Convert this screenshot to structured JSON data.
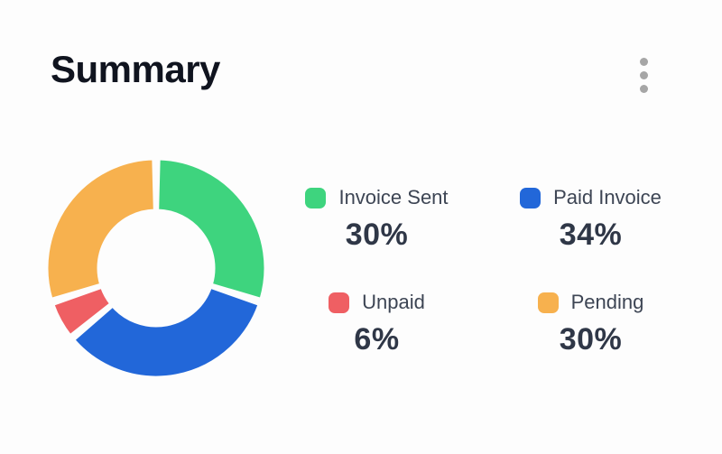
{
  "card": {
    "title": "Summary",
    "menu_icon": "kebab-vertical",
    "menu_dots_color": "#a6a6a6",
    "background_color": "#fdfdfd"
  },
  "chart_data": {
    "type": "pie",
    "subtype": "donut",
    "title": "Summary",
    "unit": "percent",
    "start_angle_deg": 0,
    "direction": "clockwise",
    "inner_radius_ratio": 0.53,
    "pad_angle_deg": 3,
    "legend_position": "right",
    "series": [
      {
        "label": "Invoice Sent",
        "value": 30,
        "display": "30%",
        "color": "#3ed47e"
      },
      {
        "label": "Paid Invoice",
        "value": 34,
        "display": "34%",
        "color": "#2267d9"
      },
      {
        "label": "Unpaid",
        "value": 6,
        "display": "6%",
        "color": "#ef5f63"
      },
      {
        "label": "Pending",
        "value": 30,
        "display": "30%",
        "color": "#f7b14e"
      }
    ]
  }
}
